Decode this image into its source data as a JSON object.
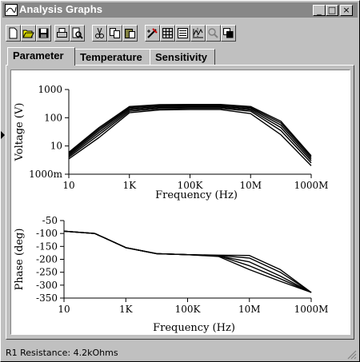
{
  "window": {
    "title": "Analysis Graphs",
    "controls": [
      "_",
      "□",
      "×"
    ]
  },
  "toolbar": {
    "buttons": [
      "new-icon",
      "open-icon",
      "save-icon",
      "print-icon",
      "print-preview-icon",
      "cut-icon",
      "copy-icon",
      "paste-icon",
      "properties-icon",
      "grid-icon",
      "legend-icon",
      "cursor-icon",
      "zoom-icon",
      "overlay-icon"
    ]
  },
  "tabs": [
    "Parameter",
    "Temperature",
    "Sensitivity"
  ],
  "active_tab": "Parameter",
  "status": {
    "text": "R1 Resistance: 4.2kOhms"
  },
  "chart_data": [
    {
      "type": "line",
      "title": "",
      "xlabel": "Frequency (Hz)",
      "ylabel": "Voltage (V)",
      "xscale": "log",
      "yscale": "log",
      "xlim": [
        10,
        1000000000
      ],
      "ylim": [
        1,
        1000
      ],
      "x_ticks": [
        10,
        1000,
        100000,
        10000000,
        1000000000
      ],
      "x_tick_labels": [
        "10",
        "1K",
        "100K",
        "10M",
        "1000M"
      ],
      "y_ticks": [
        1,
        10,
        100,
        1000
      ],
      "y_tick_labels": [
        "1000m",
        "10",
        "100",
        "1000"
      ],
      "grid": false,
      "note_series": "family of parameter-sweep curves",
      "series": [
        {
          "x": [
            10,
            100,
            1000,
            10000,
            100000,
            1000000,
            10000000,
            100000000,
            1000000000
          ],
          "y": [
            3.5,
            20,
            150,
            190,
            195,
            195,
            140,
            25,
            2
          ]
        },
        {
          "x": [
            10,
            100,
            1000,
            10000,
            100000,
            1000000,
            10000000,
            100000000,
            1000000000
          ],
          "y": [
            4,
            25,
            170,
            210,
            215,
            215,
            170,
            35,
            2.5
          ]
        },
        {
          "x": [
            10,
            100,
            1000,
            10000,
            100000,
            1000000,
            10000000,
            100000000,
            1000000000
          ],
          "y": [
            4.5,
            30,
            190,
            230,
            235,
            235,
            190,
            45,
            3
          ]
        },
        {
          "x": [
            10,
            100,
            1000,
            10000,
            100000,
            1000000,
            10000000,
            100000000,
            1000000000
          ],
          "y": [
            5,
            35,
            210,
            250,
            255,
            255,
            210,
            55,
            3.5
          ]
        },
        {
          "x": [
            10,
            100,
            1000,
            10000,
            100000,
            1000000,
            10000000,
            100000000,
            1000000000
          ],
          "y": [
            5.5,
            40,
            230,
            270,
            275,
            275,
            230,
            65,
            4
          ]
        },
        {
          "x": [
            10,
            100,
            1000,
            10000,
            100000,
            1000000,
            10000000,
            100000000,
            1000000000
          ],
          "y": [
            6,
            45,
            250,
            290,
            295,
            295,
            250,
            75,
            4.5
          ]
        }
      ]
    },
    {
      "type": "line",
      "title": "",
      "xlabel": "Frequency (Hz)",
      "ylabel": "Phase (deg)",
      "xscale": "log",
      "xlim": [
        10,
        1000000000
      ],
      "ylim": [
        -350,
        -50
      ],
      "x_ticks": [
        10,
        1000,
        100000,
        10000000,
        1000000000
      ],
      "x_tick_labels": [
        "10",
        "1K",
        "100K",
        "10M",
        "1000M"
      ],
      "y_ticks": [
        -50,
        -100,
        -150,
        -200,
        -250,
        -300,
        -350
      ],
      "y_tick_labels": [
        "-50",
        "-100",
        "-150",
        "-200",
        "-250",
        "-300",
        "-350"
      ],
      "grid": false,
      "series": [
        {
          "x": [
            10,
            100,
            1000,
            10000,
            100000,
            1000000,
            10000000,
            100000000,
            1000000000
          ],
          "y": [
            -91,
            -100,
            -155,
            -178,
            -182,
            -187,
            -210,
            -265,
            -328
          ]
        },
        {
          "x": [
            10,
            100,
            1000,
            10000,
            100000,
            1000000,
            10000000,
            100000000,
            1000000000
          ],
          "y": [
            -91,
            -100,
            -155,
            -178,
            -182,
            -185,
            -195,
            -250,
            -328
          ]
        },
        {
          "x": [
            10,
            100,
            1000,
            10000,
            100000,
            1000000,
            10000000,
            100000000,
            1000000000
          ],
          "y": [
            -91,
            -100,
            -155,
            -178,
            -182,
            -184,
            -185,
            -240,
            -328
          ]
        },
        {
          "x": [
            10,
            100,
            1000,
            10000,
            100000,
            1000000,
            10000000,
            100000000,
            1000000000
          ],
          "y": [
            -91,
            -100,
            -155,
            -178,
            -182,
            -186,
            -225,
            -275,
            -328
          ]
        },
        {
          "x": [
            10,
            100,
            1000,
            10000,
            100000,
            1000000,
            10000000,
            100000000,
            1000000000
          ],
          "y": [
            -91,
            -100,
            -155,
            -178,
            -182,
            -189,
            -240,
            -285,
            -328
          ]
        }
      ]
    }
  ]
}
